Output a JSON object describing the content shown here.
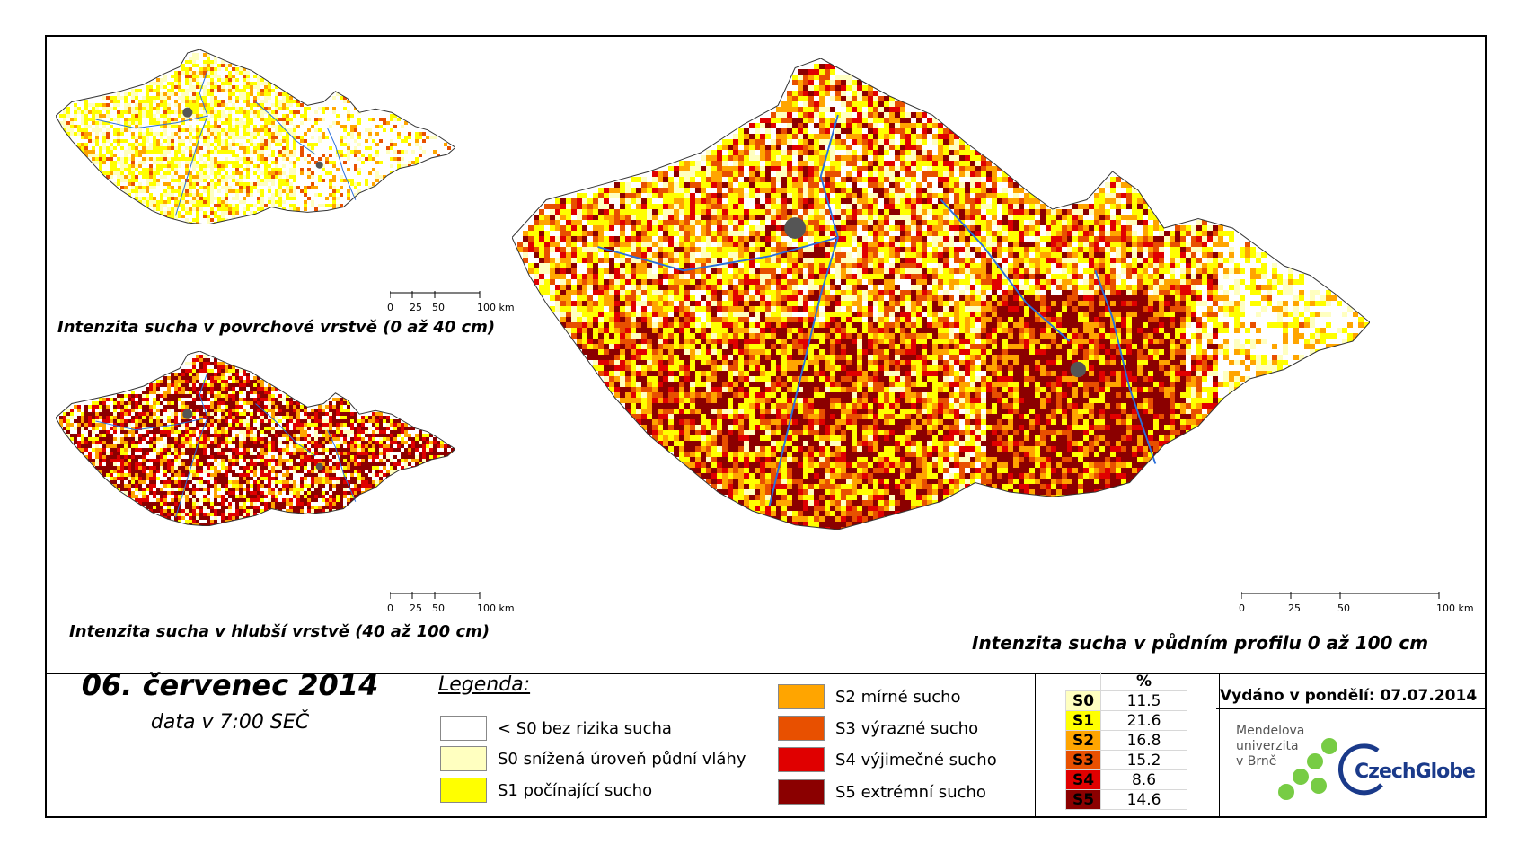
{
  "maps": {
    "surface": {
      "caption": "Intenzita sucha v povrchové vrstvě (0 až 40 cm)"
    },
    "deep": {
      "caption": "Intenzita sucha v hlubší vrstvě (40 až 100 cm)"
    },
    "profile": {
      "caption": "Intenzita sucha v půdním profilu 0 až 100 cm"
    }
  },
  "scalebar": {
    "labels": [
      "0",
      "25",
      "50",
      "100 km"
    ]
  },
  "date": {
    "main": "06. červenec 2014",
    "sub": "data v 7:00 SEČ"
  },
  "legend": {
    "title": "Legenda:",
    "items": [
      {
        "label": "< S0 bez rizika sucha",
        "color": "#ffffff"
      },
      {
        "label": "S0 snížená úroveň půdní vláhy",
        "color": "#ffffc0"
      },
      {
        "label": "S1 počínající sucho",
        "color": "#ffff00"
      },
      {
        "label": "S2 mírné sucho",
        "color": "#ffa500"
      },
      {
        "label": "S3 výrazné sucho",
        "color": "#e85000"
      },
      {
        "label": "S4 výjimečné sucho",
        "color": "#e00000"
      },
      {
        "label": "S5 extrémní sucho",
        "color": "#8b0000"
      }
    ]
  },
  "stats": {
    "header": "%",
    "rows": [
      {
        "code": "S0",
        "value": "11.5",
        "color": "#ffffc0"
      },
      {
        "code": "S1",
        "value": "21.6",
        "color": "#ffff00"
      },
      {
        "code": "S2",
        "value": "16.8",
        "color": "#ffa500"
      },
      {
        "code": "S3",
        "value": "15.2",
        "color": "#e85000"
      },
      {
        "code": "S4",
        "value": "8.6",
        "color": "#e00000"
      },
      {
        "code": "S5",
        "value": "14.6",
        "color": "#8b0000"
      }
    ]
  },
  "issued": "Vydáno v pondělí: 07.07.2014",
  "logos": {
    "mendel": [
      "Mendelova",
      "univerzita",
      "v Brně"
    ],
    "czechglobe": "CzechGlobe"
  }
}
